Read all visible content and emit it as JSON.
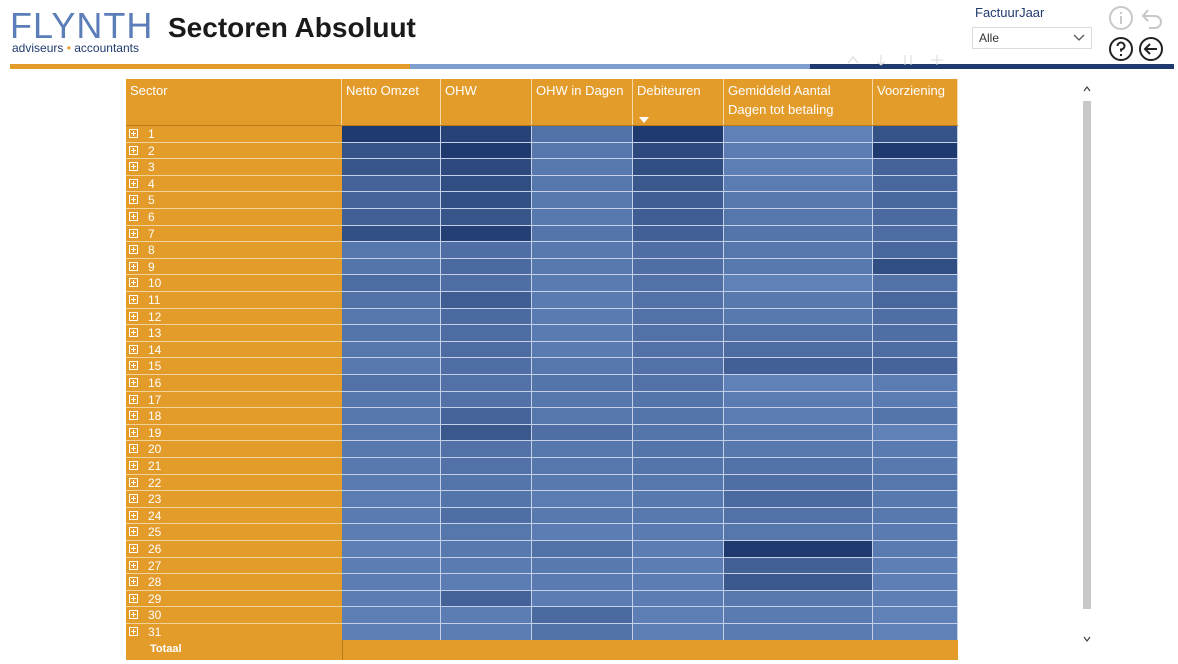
{
  "logo": {
    "brand": "FLYNTH",
    "tagline_left": "adviseurs",
    "tagline_dot": "•",
    "tagline_right": "accountants"
  },
  "page": {
    "title": "Sectoren Absoluut"
  },
  "filter": {
    "label": "FactuurJaar",
    "value": "Alle"
  },
  "icons": {
    "info": "info-icon",
    "back": "undo-icon",
    "help": "help-icon",
    "navigate_back": "arrow-left-circle-icon"
  },
  "colors": {
    "orange": "#e39b2a",
    "navy": "#1f3a6e",
    "light_blue": "#7f9ed0"
  },
  "table": {
    "columns": [
      "Sector",
      "Netto Omzet",
      "OHW",
      "OHW in Dagen",
      "Debiteuren",
      "Gemiddeld Aantal Dagen tot betaling",
      "Voorziening"
    ],
    "sorted_column": "Debiteuren",
    "sort_direction": "descending",
    "total_label": "Totaal",
    "rows": [
      {
        "sector": "1",
        "shades": [
          1.0,
          0.92,
          0.45,
          1.0,
          0.3,
          0.75
        ]
      },
      {
        "sector": "2",
        "shades": [
          0.75,
          1.0,
          0.4,
          0.85,
          0.35,
          1.0
        ]
      },
      {
        "sector": "3",
        "shades": [
          0.72,
          0.85,
          0.38,
          0.8,
          0.32,
          0.6
        ]
      },
      {
        "sector": "4",
        "shades": [
          0.6,
          0.8,
          0.4,
          0.7,
          0.35,
          0.55
        ]
      },
      {
        "sector": "5",
        "shades": [
          0.58,
          0.78,
          0.38,
          0.65,
          0.38,
          0.55
        ]
      },
      {
        "sector": "6",
        "shades": [
          0.62,
          0.72,
          0.38,
          0.65,
          0.4,
          0.52
        ]
      },
      {
        "sector": "7",
        "shades": [
          0.78,
          0.95,
          0.42,
          0.62,
          0.42,
          0.5
        ]
      },
      {
        "sector": "8",
        "shades": [
          0.4,
          0.48,
          0.38,
          0.48,
          0.4,
          0.55
        ]
      },
      {
        "sector": "9",
        "shades": [
          0.42,
          0.52,
          0.38,
          0.48,
          0.38,
          0.8
        ]
      },
      {
        "sector": "10",
        "shades": [
          0.5,
          0.48,
          0.36,
          0.45,
          0.3,
          0.45
        ]
      },
      {
        "sector": "11",
        "shades": [
          0.45,
          0.65,
          0.36,
          0.45,
          0.38,
          0.55
        ]
      },
      {
        "sector": "12",
        "shades": [
          0.4,
          0.52,
          0.36,
          0.45,
          0.38,
          0.48
        ]
      },
      {
        "sector": "13",
        "shades": [
          0.42,
          0.5,
          0.36,
          0.45,
          0.45,
          0.48
        ]
      },
      {
        "sector": "14",
        "shades": [
          0.4,
          0.5,
          0.36,
          0.45,
          0.5,
          0.5
        ]
      },
      {
        "sector": "15",
        "shades": [
          0.38,
          0.48,
          0.4,
          0.45,
          0.62,
          0.58
        ]
      },
      {
        "sector": "16",
        "shades": [
          0.45,
          0.45,
          0.42,
          0.45,
          0.3,
          0.35
        ]
      },
      {
        "sector": "17",
        "shades": [
          0.4,
          0.45,
          0.4,
          0.42,
          0.35,
          0.35
        ]
      },
      {
        "sector": "18",
        "shades": [
          0.4,
          0.58,
          0.4,
          0.42,
          0.35,
          0.42
        ]
      },
      {
        "sector": "19",
        "shades": [
          0.4,
          0.7,
          0.48,
          0.42,
          0.38,
          0.3
        ]
      },
      {
        "sector": "20",
        "shades": [
          0.38,
          0.45,
          0.4,
          0.42,
          0.38,
          0.36
        ]
      },
      {
        "sector": "21",
        "shades": [
          0.38,
          0.45,
          0.4,
          0.42,
          0.45,
          0.38
        ]
      },
      {
        "sector": "22",
        "shades": [
          0.36,
          0.42,
          0.38,
          0.4,
          0.48,
          0.4
        ]
      },
      {
        "sector": "23",
        "shades": [
          0.35,
          0.42,
          0.35,
          0.38,
          0.52,
          0.38
        ]
      },
      {
        "sector": "24",
        "shades": [
          0.36,
          0.48,
          0.38,
          0.38,
          0.45,
          0.38
        ]
      },
      {
        "sector": "25",
        "shades": [
          0.34,
          0.4,
          0.34,
          0.36,
          0.4,
          0.36
        ]
      },
      {
        "sector": "26",
        "shades": [
          0.32,
          0.38,
          0.45,
          0.34,
          1.0,
          0.36
        ]
      },
      {
        "sector": "27",
        "shades": [
          0.34,
          0.36,
          0.38,
          0.34,
          0.62,
          0.32
        ]
      },
      {
        "sector": "28",
        "shades": [
          0.34,
          0.34,
          0.36,
          0.34,
          0.7,
          0.32
        ]
      },
      {
        "sector": "29",
        "shades": [
          0.34,
          0.6,
          0.34,
          0.34,
          0.38,
          0.32
        ]
      },
      {
        "sector": "30",
        "shades": [
          0.32,
          0.34,
          0.52,
          0.32,
          0.36,
          0.3
        ]
      },
      {
        "sector": "31",
        "shades": [
          0.32,
          0.34,
          0.45,
          0.32,
          0.36,
          0.3
        ]
      }
    ]
  }
}
